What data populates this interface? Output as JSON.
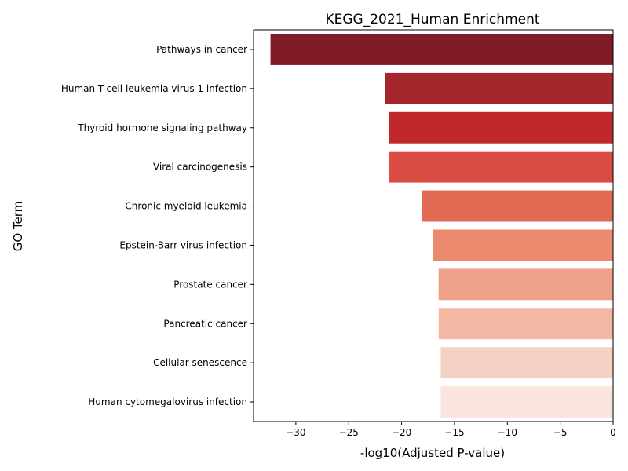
{
  "chart_data": {
    "type": "bar",
    "orientation": "horizontal",
    "title": "KEGG_2021_Human Enrichment",
    "xlabel": "-log10(Adjusted P-value)",
    "ylabel": "GO Term",
    "xlim": [
      -34,
      0
    ],
    "xticks": [
      -30,
      -25,
      -20,
      -15,
      -10,
      -5,
      0
    ],
    "xtick_labels": [
      "−30",
      "−25",
      "−20",
      "−15",
      "−10",
      "−5",
      "0"
    ],
    "grid": false,
    "categories": [
      "Pathways in cancer",
      "Human T-cell leukemia virus 1 infection",
      "Thyroid hormone signaling pathway",
      "Viral carcinogenesis",
      "Chronic myeloid leukemia",
      "Epstein-Barr virus infection",
      "Prostate cancer",
      "Pancreatic cancer",
      "Cellular senescence",
      "Human cytomegalovirus infection"
    ],
    "values": [
      -32.4,
      -21.6,
      -21.2,
      -21.2,
      -18.1,
      -17.0,
      -16.5,
      -16.5,
      -16.3,
      -16.3
    ],
    "colors": [
      "#7f1c25",
      "#a3272d",
      "#c0282d",
      "#d84c41",
      "#e26a53",
      "#eb8a6e",
      "#eda18a",
      "#f2b8a4",
      "#f5d1c3",
      "#f9e5de"
    ]
  }
}
